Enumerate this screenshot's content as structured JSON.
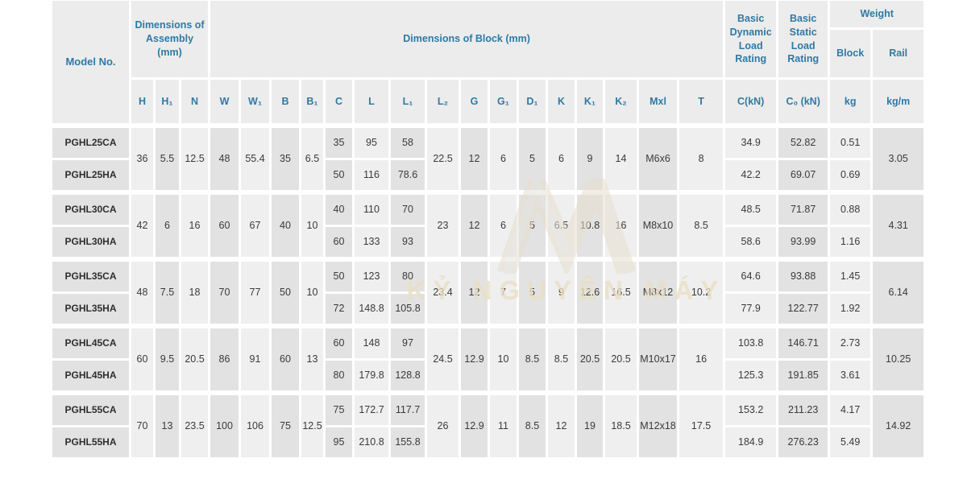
{
  "colors": {
    "accent_blue": "#2e7aa6",
    "cell_light": "#efefef",
    "cell_dark": "#e2e2e2",
    "header_bg": "#ececec",
    "data_text": "#3a3a3a",
    "watermark_cream": "#eadfc4"
  },
  "watermark": {
    "text": "KỶ NGUYÊN MÁY",
    "logo": "m-chevron-logo"
  },
  "table": {
    "header": {
      "model": "Model No.",
      "assembly": "Dimensions of Assembly (mm)",
      "block": "Dimensions of Block (mm)",
      "dynamic": "Basic Dynamic Load Rating",
      "static": "Basic Static Load Rating",
      "weight": "Weight",
      "weight_block": "Block",
      "weight_rail": "Rail"
    },
    "columns": [
      {
        "key": "model",
        "label": "Model No.",
        "shade": "d"
      },
      {
        "key": "H",
        "label": "H",
        "shade": "l"
      },
      {
        "key": "H1",
        "label": "H₁",
        "shade": "d"
      },
      {
        "key": "N",
        "label": "N",
        "shade": "l"
      },
      {
        "key": "W",
        "label": "W",
        "shade": "d"
      },
      {
        "key": "W1",
        "label": "W₁",
        "shade": "l"
      },
      {
        "key": "B",
        "label": "B",
        "shade": "d"
      },
      {
        "key": "B1",
        "label": "B₁",
        "shade": "l"
      },
      {
        "key": "C",
        "label": "C",
        "shade": "d"
      },
      {
        "key": "L",
        "label": "L",
        "shade": "l"
      },
      {
        "key": "L1",
        "label": "L₁",
        "shade": "d"
      },
      {
        "key": "L2",
        "label": "L₂",
        "shade": "l"
      },
      {
        "key": "G",
        "label": "G",
        "shade": "d"
      },
      {
        "key": "G1",
        "label": "G₁",
        "shade": "l"
      },
      {
        "key": "D1",
        "label": "D₁",
        "shade": "d"
      },
      {
        "key": "K",
        "label": "K",
        "shade": "l"
      },
      {
        "key": "K1",
        "label": "K₁",
        "shade": "d"
      },
      {
        "key": "K2",
        "label": "K₂",
        "shade": "l"
      },
      {
        "key": "Mxl",
        "label": "Mxl",
        "shade": "d"
      },
      {
        "key": "T",
        "label": "T",
        "shade": "l"
      },
      {
        "key": "CkN",
        "label": "C(kN)",
        "shade": "l"
      },
      {
        "key": "C0kN",
        "label": "C₀ (kN)",
        "shade": "d"
      },
      {
        "key": "kg",
        "label": "kg",
        "shade": "l"
      },
      {
        "key": "kgm",
        "label": "kg/m",
        "shade": "d"
      }
    ],
    "shared_keys_assembly": [
      "H",
      "H1",
      "N",
      "W",
      "W1",
      "B",
      "B1"
    ],
    "per_row_keys_block": [
      "C",
      "L",
      "L1"
    ],
    "shared_keys_block": [
      "L2",
      "G",
      "G1",
      "D1",
      "K",
      "K1",
      "K2",
      "Mxl",
      "T"
    ],
    "per_row_keys_load": [
      "CkN",
      "C0kN",
      "kg"
    ],
    "shared_keys_rail": [
      "kgm"
    ],
    "groups": [
      {
        "shared": {
          "H": "36",
          "H1": "5.5",
          "N": "12.5",
          "W": "48",
          "W1": "55.4",
          "B": "35",
          "B1": "6.5",
          "L2": "22.5",
          "G": "12",
          "G1": "6",
          "D1": "5",
          "K": "6",
          "K1": "9",
          "K2": "14",
          "Mxl": "M6x6",
          "T": "8",
          "kgm": "3.05"
        },
        "rows": [
          {
            "model": "PGHL25CA",
            "C": "35",
            "L": "95",
            "L1": "58",
            "CkN": "34.9",
            "C0kN": "52.82",
            "kg": "0.51"
          },
          {
            "model": "PGHL25HA",
            "C": "50",
            "L": "116",
            "L1": "78.6",
            "CkN": "42.2",
            "C0kN": "69.07",
            "kg": "0.69"
          }
        ]
      },
      {
        "shared": {
          "H": "42",
          "H1": "6",
          "N": "16",
          "W": "60",
          "W1": "67",
          "B": "40",
          "B1": "10",
          "L2": "23",
          "G": "12",
          "G1": "6",
          "D1": "5",
          "K": "6.5",
          "K1": "10.8",
          "K2": "16",
          "Mxl": "M8x10",
          "T": "8.5",
          "kgm": "4.31"
        },
        "rows": [
          {
            "model": "PGHL30CA",
            "C": "40",
            "L": "110",
            "L1": "70",
            "CkN": "48.5",
            "C0kN": "71.87",
            "kg": "0.88"
          },
          {
            "model": "PGHL30HA",
            "C": "60",
            "L": "133",
            "L1": "93",
            "CkN": "58.6",
            "C0kN": "93.99",
            "kg": "1.16"
          }
        ]
      },
      {
        "shared": {
          "H": "48",
          "H1": "7.5",
          "N": "18",
          "W": "70",
          "W1": "77",
          "B": "50",
          "B1": "10",
          "L2": "23.4",
          "G": "12",
          "G1": "7",
          "D1": "5",
          "K": "9",
          "K1": "12.6",
          "K2": "16.5",
          "Mxl": "M8x12",
          "T": "10.2",
          "kgm": "6.14"
        },
        "rows": [
          {
            "model": "PGHL35CA",
            "C": "50",
            "L": "123",
            "L1": "80",
            "CkN": "64.6",
            "C0kN": "93.88",
            "kg": "1.45"
          },
          {
            "model": "PGHL35HA",
            "C": "72",
            "L": "148.8",
            "L1": "105.8",
            "CkN": "77.9",
            "C0kN": "122.77",
            "kg": "1.92"
          }
        ]
      },
      {
        "shared": {
          "H": "60",
          "H1": "9.5",
          "N": "20.5",
          "W": "86",
          "W1": "91",
          "B": "60",
          "B1": "13",
          "L2": "24.5",
          "G": "12.9",
          "G1": "10",
          "D1": "8.5",
          "K": "8.5",
          "K1": "20.5",
          "K2": "20.5",
          "Mxl": "M10x17",
          "T": "16",
          "kgm": "10.25"
        },
        "rows": [
          {
            "model": "PGHL45CA",
            "C": "60",
            "L": "148",
            "L1": "97",
            "CkN": "103.8",
            "C0kN": "146.71",
            "kg": "2.73"
          },
          {
            "model": "PGHL45HA",
            "C": "80",
            "L": "179.8",
            "L1": "128.8",
            "CkN": "125.3",
            "C0kN": "191.85",
            "kg": "3.61"
          }
        ]
      },
      {
        "shared": {
          "H": "70",
          "H1": "13",
          "N": "23.5",
          "W": "100",
          "W1": "106",
          "B": "75",
          "B1": "12.5",
          "L2": "26",
          "G": "12.9",
          "G1": "11",
          "D1": "8.5",
          "K": "12",
          "K1": "19",
          "K2": "18.5",
          "Mxl": "M12x18",
          "T": "17.5",
          "kgm": "14.92"
        },
        "rows": [
          {
            "model": "PGHL55CA",
            "C": "75",
            "L": "172.7",
            "L1": "117.7",
            "CkN": "153.2",
            "C0kN": "211.23",
            "kg": "4.17"
          },
          {
            "model": "PGHL55HA",
            "C": "95",
            "L": "210.8",
            "L1": "155.8",
            "CkN": "184.9",
            "C0kN": "276.23",
            "kg": "5.49"
          }
        ]
      }
    ]
  }
}
